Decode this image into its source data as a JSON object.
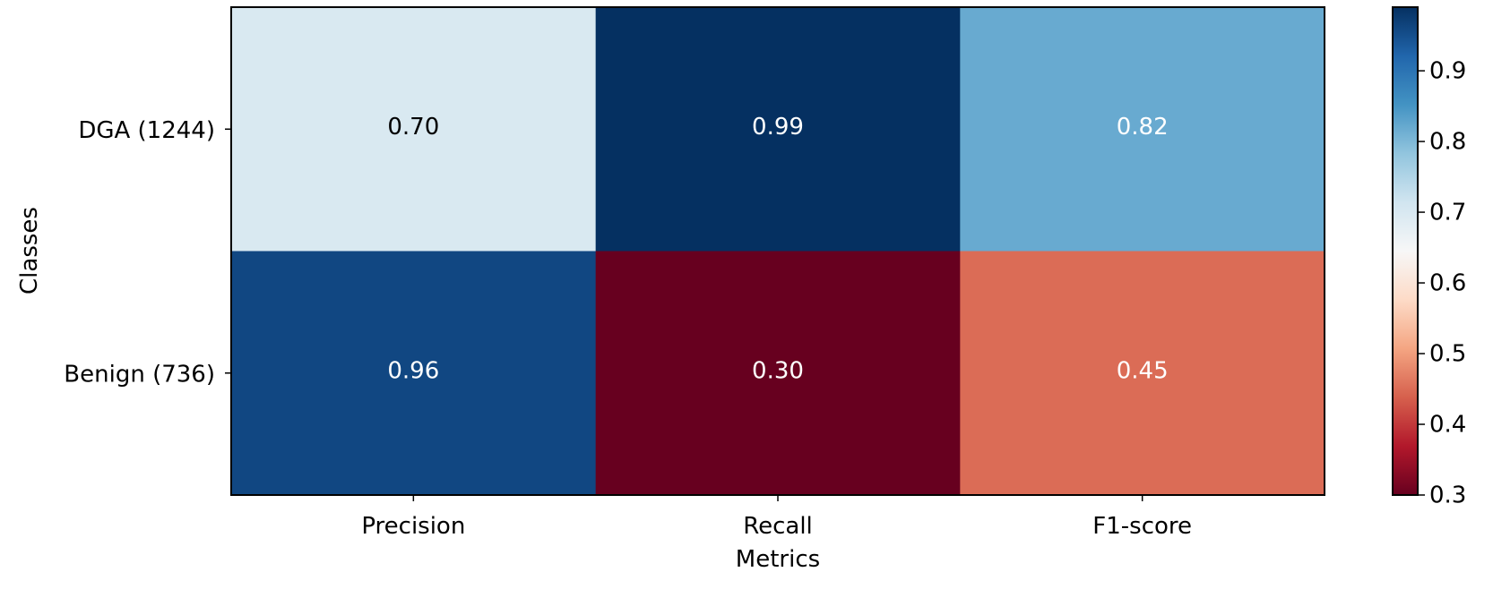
{
  "chart_data": {
    "type": "heatmap",
    "title": "",
    "xlabel": "Metrics",
    "ylabel": "Classes",
    "x_categories": [
      "Precision",
      "Recall",
      "F1-score"
    ],
    "y_categories": [
      "DGA (1244)",
      "Benign (736)"
    ],
    "values": [
      [
        0.7,
        0.99,
        0.82
      ],
      [
        0.96,
        0.3,
        0.45
      ]
    ],
    "cell_labels": [
      [
        "0.70",
        "0.99",
        "0.82"
      ],
      [
        "0.96",
        "0.30",
        "0.45"
      ]
    ],
    "colormap": "RdBu",
    "color_range": [
      0.3,
      0.99
    ],
    "colorbar": {
      "ticks": [
        0.3,
        0.4,
        0.5,
        0.6,
        0.7,
        0.8,
        0.9
      ],
      "tick_labels": [
        "0.3",
        "0.4",
        "0.5",
        "0.6",
        "0.7",
        "0.8",
        "0.9"
      ]
    },
    "colors": {
      "low": "#67001f",
      "mid": "#f7f7f7",
      "high": "#053061",
      "text_dark": "#000000",
      "text_light": "#ffffff"
    }
  }
}
